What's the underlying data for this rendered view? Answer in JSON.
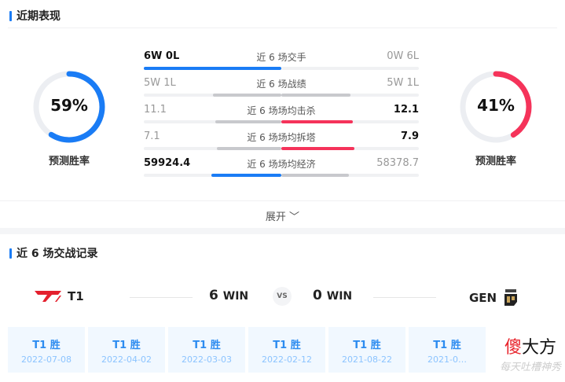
{
  "recent": {
    "title": "近期表现",
    "left": {
      "win_rate": 59,
      "label": "预测胜率",
      "color": "#1a7cf5"
    },
    "right": {
      "win_rate": 41,
      "label": "预测胜率",
      "color": "#f5335a"
    },
    "rows": [
      {
        "left": "6W 0L",
        "label": "近 6 场交手",
        "right": "0W 6L",
        "left_bold": true,
        "right_bold": false,
        "left_fill": 100,
        "right_fill": 0,
        "left_color": "#1a7cf5",
        "right_color": "#c8c9cd"
      },
      {
        "left": "5W 1L",
        "label": "近 6 场战绩",
        "right": "5W 1L",
        "left_bold": false,
        "right_bold": false,
        "left_fill": 50,
        "right_fill": 50,
        "left_color": "#c8c9cd",
        "right_color": "#c8c9cd"
      },
      {
        "left": "11.1",
        "label": "近 6 场场均击杀",
        "right": "12.1",
        "left_bold": false,
        "right_bold": true,
        "left_fill": 48,
        "right_fill": 52,
        "left_color": "#c8c9cd",
        "right_color": "#f5335a"
      },
      {
        "left": "7.1",
        "label": "近 6 场场均拆塔",
        "right": "7.9",
        "left_bold": false,
        "right_bold": true,
        "left_fill": 47,
        "right_fill": 53,
        "left_color": "#c8c9cd",
        "right_color": "#f5335a"
      },
      {
        "left": "59924.4",
        "label": "近 6 场场均经济",
        "right": "58378.7",
        "left_bold": true,
        "right_bold": false,
        "left_fill": 51,
        "right_fill": 49,
        "left_color": "#1a7cf5",
        "right_color": "#c8c9cd"
      }
    ],
    "expand": "展开 ﹀"
  },
  "history": {
    "title": "近 6 场交战记录",
    "team_left": "T1",
    "team_right": "GEN",
    "score_left": "6",
    "score_right": "0",
    "win": "WIN",
    "vs": "VS",
    "matches": [
      {
        "result": "T1 胜",
        "date": "2022-07-08"
      },
      {
        "result": "T1 胜",
        "date": "2022-04-02"
      },
      {
        "result": "T1 胜",
        "date": "2022-03-03"
      },
      {
        "result": "T1 胜",
        "date": "2022-02-12"
      },
      {
        "result": "T1 胜",
        "date": "2021-08-22"
      },
      {
        "result": "T1 胜",
        "date": "2021-0…"
      }
    ]
  },
  "watermark": {
    "name_red": "傻",
    "name": "大方",
    "sub": "每天吐槽神秀"
  }
}
